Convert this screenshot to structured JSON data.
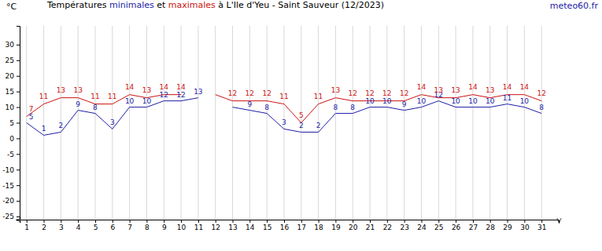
{
  "chart_data": {
    "type": "line",
    "title": "Températures minimales et maximales à L'Ile d'Yeu - Saint Sauveur (12/2023)",
    "annotations": [
      "meteo60.fr"
    ],
    "y_label": "°C",
    "x": [
      1,
      2,
      3,
      4,
      5,
      6,
      7,
      8,
      9,
      10,
      11,
      12,
      13,
      14,
      15,
      16,
      17,
      18,
      19,
      20,
      21,
      22,
      23,
      24,
      25,
      26,
      27,
      28,
      29,
      30,
      31
    ],
    "series": [
      {
        "name": "minimales",
        "color": "#1c1ca8",
        "values": [
          5,
          1,
          2,
          9,
          8,
          3,
          10,
          10,
          12,
          12,
          13,
          null,
          10,
          9,
          8,
          3,
          2,
          2,
          8,
          8,
          10,
          10,
          9,
          10,
          12,
          10,
          10,
          10,
          11,
          10,
          8
        ],
        "value_labels": [
          "5",
          "1",
          "2",
          "9",
          "8",
          "3",
          "10",
          "10",
          "12",
          "12",
          "13",
          null,
          null,
          "9",
          "8",
          "3",
          "2",
          "2",
          "8",
          "8",
          "10",
          "10",
          "9",
          "10",
          "12",
          "10",
          "10",
          "10",
          "11",
          "10",
          "8"
        ]
      },
      {
        "name": "maximales",
        "color": "#cc1111",
        "values": [
          7,
          11,
          13,
          13,
          11,
          11,
          14,
          13,
          14,
          14,
          null,
          14,
          12,
          12,
          12,
          11,
          5,
          11,
          13,
          12,
          12,
          12,
          12,
          14,
          13,
          13,
          14,
          13,
          14,
          14,
          12
        ],
        "value_labels": [
          "7",
          "11",
          "13",
          "13",
          "11",
          "11",
          "14",
          "13",
          "14",
          "14",
          null,
          null,
          "12",
          "12",
          "12",
          "11",
          "5",
          "11",
          "13",
          "12",
          "12",
          "12",
          "12",
          "14",
          "13",
          "13",
          "14",
          "13",
          "14",
          "14",
          "12"
        ]
      }
    ],
    "xlim": [
      0.6,
      32
    ],
    "xticks": [
      1,
      2,
      3,
      4,
      5,
      6,
      7,
      8,
      9,
      10,
      11,
      12,
      13,
      14,
      15,
      16,
      17,
      18,
      19,
      20,
      21,
      22,
      23,
      24,
      25,
      26,
      27,
      28,
      29,
      30,
      31
    ],
    "ylim": [
      -26,
      36
    ],
    "yticks": [
      -25,
      -20,
      -15,
      -10,
      -5,
      0,
      5,
      10,
      15,
      20,
      25,
      30
    ],
    "grid": true,
    "data_labels": true
  }
}
